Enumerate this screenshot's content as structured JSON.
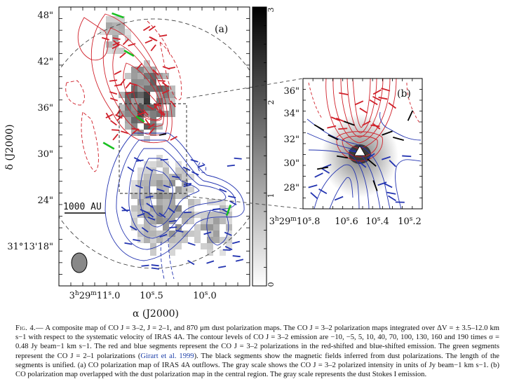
{
  "panel_a": {
    "label": "(a)",
    "dec_ticks": [
      "48\"",
      "42\"",
      "36\"",
      "30\"",
      "24\"",
      "31°13'18\""
    ],
    "ra_ticks": [
      "3h29m11.s0",
      "10.s5",
      "10.s0"
    ],
    "ra_ticks_display": [
      {
        "h": "3",
        "m": "29",
        "s": "11",
        "f": "0"
      },
      {
        "s": "10",
        "f": "5"
      },
      {
        "s": "10",
        "f": "0"
      }
    ],
    "xlabel": "α (J2000)",
    "ylabel": "δ (J2000)",
    "scalebar_label": "1000 AU"
  },
  "colorbar": {
    "ticks": [
      "3",
      "2",
      "1",
      "0"
    ],
    "range": [
      0,
      3
    ]
  },
  "panel_b": {
    "label": "(b)",
    "dec_ticks": [
      "36\"",
      "34\"",
      "32\"",
      "30\"",
      "28\""
    ],
    "ra_ticks_display": [
      {
        "h": "3",
        "m": "29",
        "s": "10",
        "f": "8"
      },
      {
        "s": "10",
        "f": "6"
      },
      {
        "s": "10",
        "f": "4"
      },
      {
        "s": "10",
        "f": "2"
      }
    ]
  },
  "colors": {
    "red": "#d0202a",
    "blue": "#2233b0",
    "green": "#18c020",
    "black": "#000000"
  },
  "caption": {
    "fig_label": "Fig. 4.—",
    "text_1": " A composite map of CO J = 3–2, J = 2–1, and 870 μm dust polarization maps. The CO J = 3–2 polarization maps integrated over ΔV = ± 3.5–12.0 km s−1 with respect to the systematic velocity of IRAS 4A. The contour levels of CO J = 3–2 emission are −10, −5, 5, 10, 40, 70, 100, 130, 160 and 190 times σ = 0.48 Jy beam−1 km s−1. The red and blue segments represent the CO J = 3–2 polarizations in the red-shifted and blue-shifted emission. The green segments represent the CO J = 2–1 polarizations (",
    "citation": "Girart et al. 1999",
    "text_2": "). The black segments show the magnetic fields inferred from dust polarizations. The length of the segments is unified. (a) CO polarization map of IRAS 4A outflows. The gray scale shows the CO J = 3–2 polarized intensity in units of Jy beam−1 km s−1. (b) CO polarization map overlapped with the dust polarization map in the central region. The gray scale represents the dust Stokes I emission."
  }
}
